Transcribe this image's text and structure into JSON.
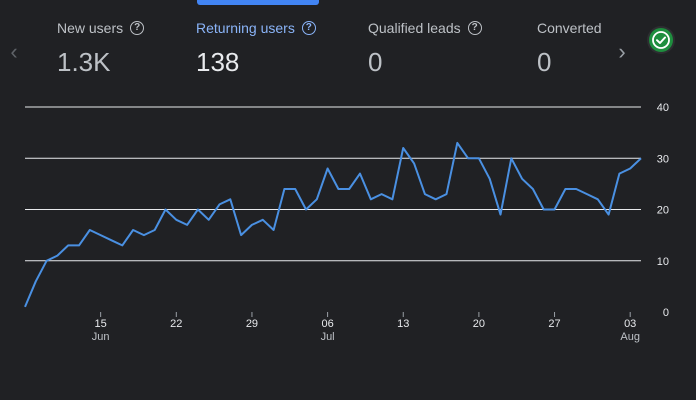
{
  "tabs": [
    {
      "label": "New users",
      "value": "1.3K",
      "active": false
    },
    {
      "label": "Returning users",
      "value": "138",
      "active": true
    },
    {
      "label": "Qualified leads",
      "value": "0",
      "active": false
    },
    {
      "label": "Converted",
      "value": "0",
      "active": false
    }
  ],
  "icons": {
    "help": "help-circle-icon",
    "prev": "chevron-left-icon",
    "next": "chevron-right-icon",
    "status": "check-circle-icon"
  },
  "colors": {
    "accent": "#4285f4",
    "line": "#4a90e2",
    "status": "#1e8e3e"
  },
  "chart_data": {
    "type": "line",
    "ylim": [
      0,
      40
    ],
    "y_ticks": [
      "0",
      "10",
      "20",
      "30",
      "40"
    ],
    "x_ticks": [
      {
        "day": "15",
        "month": "Jun"
      },
      {
        "day": "22",
        "month": ""
      },
      {
        "day": "29",
        "month": ""
      },
      {
        "day": "06",
        "month": "Jul"
      },
      {
        "day": "13",
        "month": ""
      },
      {
        "day": "20",
        "month": ""
      },
      {
        "day": "27",
        "month": ""
      },
      {
        "day": "03",
        "month": "Aug"
      }
    ],
    "series": [
      {
        "values": [
          1,
          6,
          10,
          11,
          13,
          13,
          16,
          15,
          14,
          13,
          16,
          15,
          16,
          20,
          18,
          17,
          20,
          18,
          21,
          22,
          15,
          17,
          18,
          16,
          24,
          24,
          20,
          22,
          28,
          24,
          24,
          27,
          22,
          23,
          22,
          32,
          29,
          23,
          22,
          23,
          33,
          30,
          30,
          26,
          19,
          30,
          26,
          24,
          20,
          20,
          24,
          24,
          23,
          22,
          19,
          27,
          28,
          30
        ]
      }
    ],
    "grid": true
  }
}
